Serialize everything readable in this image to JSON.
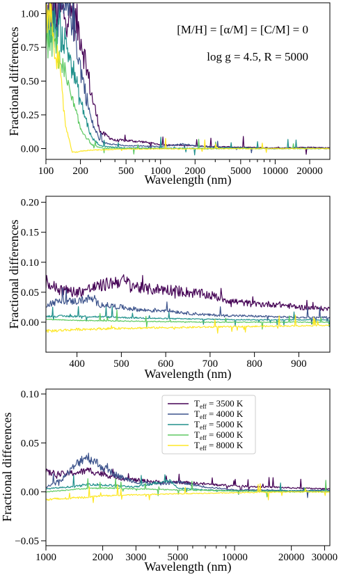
{
  "chart_data": [
    {
      "type": "line",
      "xscale": "log",
      "xlabel": "Wavelength (nm)",
      "ylabel": "Fractional differences",
      "xlim": [
        100,
        30000
      ],
      "ylim": [
        -0.08,
        1.08
      ],
      "xticks": [
        100,
        200,
        500,
        1000,
        2000,
        5000,
        10000,
        20000
      ],
      "xtick_labels": [
        "100",
        "200",
        "500",
        "1000",
        "2000",
        "5000",
        "10000",
        "20000"
      ],
      "yticks": [
        0.0,
        0.25,
        0.5,
        0.75,
        1.0
      ],
      "ytick_labels": [
        "0.00",
        "0.25",
        "0.50",
        "0.75",
        "1.00"
      ],
      "annotations": [
        "[M/H] = [α/M] = [C/M] = 0",
        "log g = 4.5, R = 5000"
      ],
      "series": [
        {
          "teff": 3500,
          "color": "#440154",
          "x": [
            140,
            170,
            200,
            250,
            300,
            400,
            500,
            700,
            1000,
            1500,
            2000,
            3000,
            5000,
            10000,
            20000,
            30000
          ],
          "y": [
            1.0,
            1.0,
            0.85,
            0.4,
            0.12,
            0.06,
            0.06,
            0.05,
            0.03,
            0.025,
            0.02,
            0.015,
            0.01,
            0.005,
            0.01,
            0.005
          ]
        },
        {
          "teff": 4000,
          "color": "#3b528b",
          "x": [
            140,
            170,
            200,
            250,
            300,
            400,
            500,
            700,
            1000,
            1600,
            2000,
            3000,
            5000,
            10000,
            20000,
            30000
          ],
          "y": [
            1.0,
            1.0,
            0.6,
            0.2,
            0.05,
            0.03,
            0.02,
            0.02,
            0.015,
            0.035,
            0.02,
            0.01,
            0.005,
            0.0,
            0.005,
            0.0
          ]
        },
        {
          "teff": 5000,
          "color": "#21918c",
          "x": [
            130,
            160,
            200,
            250,
            300,
            400,
            500,
            1000,
            2000,
            5000,
            10000,
            30000
          ],
          "y": [
            0.9,
            0.7,
            0.35,
            0.08,
            0.02,
            0.01,
            0.005,
            0.003,
            0.002,
            0.005,
            0.0,
            0.0
          ]
        },
        {
          "teff": 6000,
          "color": "#5ec962",
          "x": [
            120,
            150,
            200,
            250,
            300,
            400,
            500,
            1000,
            2000,
            5000,
            10000,
            30000
          ],
          "y": [
            0.8,
            0.5,
            0.15,
            0.03,
            0.005,
            0.0,
            0.0,
            0.0,
            0.0,
            0.0,
            0.0,
            0.0
          ]
        },
        {
          "teff": 8000,
          "color": "#fde725",
          "x": [
            110,
            130,
            150,
            170,
            200,
            250,
            300,
            400,
            500,
            1000,
            2000,
            5000,
            10000,
            30000
          ],
          "y": [
            1.0,
            0.6,
            0.15,
            -0.03,
            -0.02,
            -0.01,
            -0.01,
            -0.005,
            -0.003,
            -0.002,
            -0.001,
            0.0,
            0.0,
            0.0
          ]
        }
      ]
    },
    {
      "type": "line",
      "xscale": "linear",
      "xlabel": "Wavelength (nm)",
      "ylabel": "Fractional differences",
      "xlim": [
        330,
        970
      ],
      "ylim": [
        -0.05,
        0.21
      ],
      "xticks": [
        400,
        500,
        600,
        700,
        800,
        900
      ],
      "xtick_labels": [
        "400",
        "500",
        "600",
        "700",
        "800",
        "900"
      ],
      "yticks": [
        0.0,
        0.05,
        0.1,
        0.15,
        0.2
      ],
      "ytick_labels": [
        "0.00",
        "0.05",
        "0.10",
        "0.15",
        "0.20"
      ],
      "series": [
        {
          "teff": 3500,
          "color": "#440154",
          "x": [
            330,
            360,
            400,
            450,
            500,
            550,
            600,
            650,
            700,
            750,
            800,
            850,
            900,
            970
          ],
          "y": [
            0.065,
            0.055,
            0.05,
            0.06,
            0.07,
            0.055,
            0.055,
            0.05,
            0.045,
            0.035,
            0.03,
            0.03,
            0.025,
            0.022
          ]
        },
        {
          "teff": 4000,
          "color": "#3b528b",
          "x": [
            330,
            360,
            400,
            430,
            450,
            500,
            550,
            600,
            650,
            700,
            800,
            900,
            970
          ],
          "y": [
            0.03,
            0.035,
            0.035,
            0.04,
            0.03,
            0.025,
            0.02,
            0.02,
            0.015,
            0.012,
            0.01,
            0.008,
            0.008
          ]
        },
        {
          "teff": 5000,
          "color": "#21918c",
          "x": [
            330,
            400,
            500,
            600,
            700,
            800,
            900,
            970
          ],
          "y": [
            0.01,
            0.01,
            0.008,
            0.006,
            0.005,
            0.004,
            0.004,
            0.004
          ]
        },
        {
          "teff": 6000,
          "color": "#5ec962",
          "x": [
            330,
            400,
            500,
            600,
            700,
            800,
            900,
            970
          ],
          "y": [
            0.005,
            0.003,
            0.002,
            0.001,
            0.0,
            0.0,
            0.0,
            0.0
          ]
        },
        {
          "teff": 8000,
          "color": "#fde725",
          "x": [
            330,
            400,
            500,
            600,
            700,
            800,
            900,
            970
          ],
          "y": [
            -0.015,
            -0.012,
            -0.01,
            -0.009,
            -0.008,
            -0.007,
            -0.006,
            -0.005
          ]
        }
      ]
    },
    {
      "type": "line",
      "xscale": "log",
      "xlabel": "Wavelength (nm)",
      "ylabel": "Fractional differences",
      "xlim": [
        1000,
        32000
      ],
      "ylim": [
        -0.055,
        0.105
      ],
      "xticks": [
        1000,
        2000,
        3000,
        5000,
        10000,
        20000,
        30000
      ],
      "xtick_labels": [
        "1000",
        "2000",
        "3000",
        "5000",
        "10000",
        "20000",
        "30000"
      ],
      "yticks": [
        -0.05,
        0.0,
        0.05,
        0.1
      ],
      "ytick_labels": [
        "−0.05",
        "0.00",
        "0.05",
        "0.10"
      ],
      "legend": {
        "loc": "upper center"
      },
      "series": [
        {
          "teff": 3500,
          "name_main": "T",
          "name_sub": "eff",
          "name_rest": " = 3500 K",
          "color": "#440154",
          "x": [
            1000,
            1200,
            1500,
            1700,
            2000,
            2500,
            3000,
            4000,
            5000,
            7000,
            10000,
            15000,
            20000,
            32000
          ],
          "y": [
            0.02,
            0.018,
            0.02,
            0.022,
            0.018,
            0.014,
            0.012,
            0.01,
            0.01,
            0.008,
            0.006,
            0.005,
            0.004,
            0.003
          ]
        },
        {
          "teff": 4000,
          "name_main": "T",
          "name_sub": "eff",
          "name_rest": " = 4000 K",
          "color": "#3b528b",
          "x": [
            1000,
            1200,
            1400,
            1600,
            1700,
            2000,
            2500,
            3000,
            4000,
            5000,
            7000,
            10000,
            15000,
            20000,
            32000
          ],
          "y": [
            0.005,
            0.012,
            0.025,
            0.036,
            0.035,
            0.025,
            0.015,
            0.01,
            0.008,
            0.01,
            0.005,
            0.002,
            0.002,
            0.001,
            0.002
          ]
        },
        {
          "teff": 5000,
          "name_main": "T",
          "name_sub": "eff",
          "name_rest": " = 5000 K",
          "color": "#21918c",
          "x": [
            1000,
            1500,
            1700,
            2000,
            3000,
            4500,
            5000,
            7000,
            10000,
            20000,
            32000
          ],
          "y": [
            0.003,
            0.006,
            0.008,
            0.007,
            0.005,
            0.012,
            0.004,
            0.002,
            0.001,
            0.001,
            0.001
          ]
        },
        {
          "teff": 6000,
          "name_main": "T",
          "name_sub": "eff",
          "name_rest": " = 6000 K",
          "color": "#5ec962",
          "x": [
            1000,
            1500,
            2000,
            3000,
            5000,
            10000,
            20000,
            32000
          ],
          "y": [
            0.0,
            0.003,
            0.004,
            0.003,
            0.002,
            0.001,
            0.0,
            0.0
          ]
        },
        {
          "teff": 8000,
          "name_main": "T",
          "name_sub": "eff",
          "name_rest": " = 8000 K",
          "color": "#fde725",
          "x": [
            1000,
            1500,
            2000,
            3000,
            5000,
            10000,
            20000,
            32000
          ],
          "y": [
            -0.008,
            -0.006,
            -0.004,
            -0.003,
            -0.002,
            -0.001,
            0.0,
            0.0
          ]
        }
      ]
    }
  ]
}
